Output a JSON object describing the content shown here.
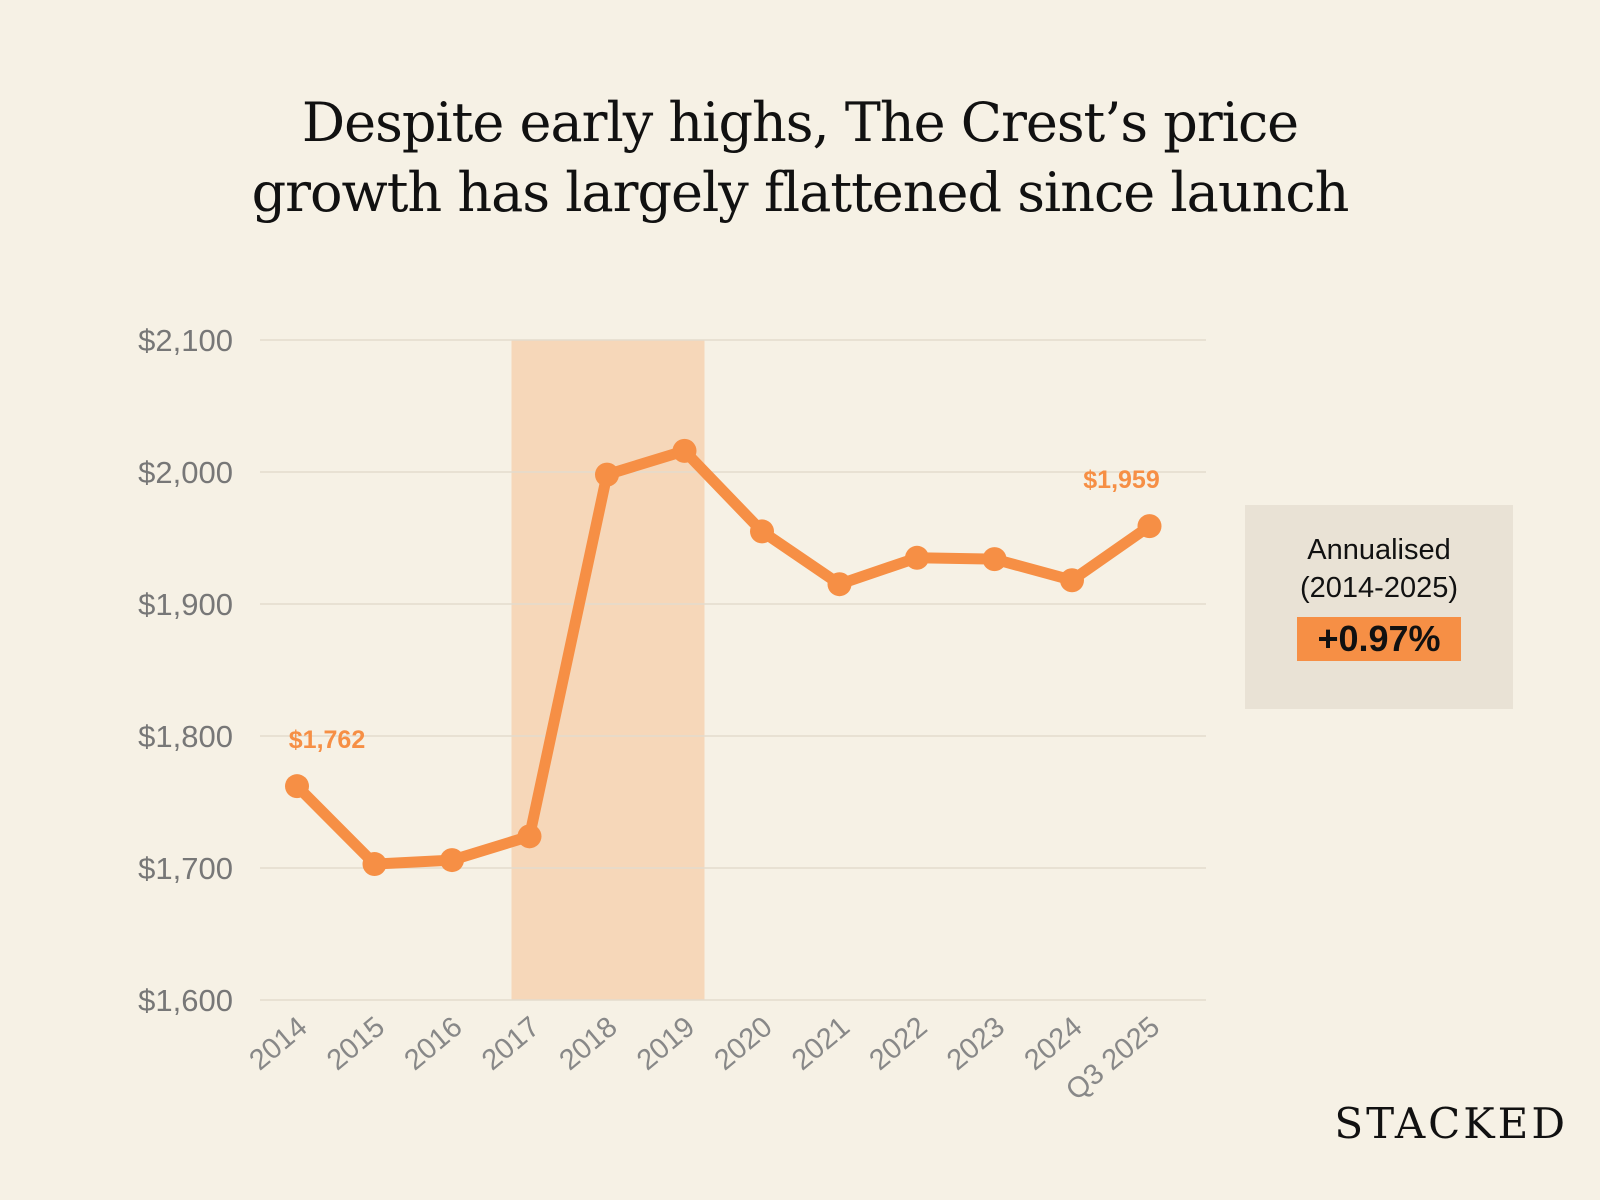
{
  "title_lines": [
    "Despite early highs, The Crest’s price",
    "growth has largely flattened since launch"
  ],
  "annotation": {
    "label_line1": "Annualised",
    "label_line2": "(2014-2025)",
    "value": "+0.97%"
  },
  "logo": "STACKED",
  "colors": {
    "line": "#f68f45",
    "highlight": "#f6d7b9",
    "label": "#f68f45",
    "background": "#f6f1e5",
    "box": "#e9e2d5"
  },
  "chart_data": {
    "type": "line",
    "categories": [
      "2014",
      "2015",
      "2016",
      "2017",
      "2018",
      "2019",
      "2020",
      "2021",
      "2022",
      "2023",
      "2024",
      "Q3 2025"
    ],
    "values": [
      1762,
      1703,
      1706,
      1724,
      1998,
      2016,
      1955,
      1915,
      1935,
      1934,
      1918,
      1959
    ],
    "data_labels": {
      "0": "$1,762",
      "11": "$1,959"
    },
    "ylim": [
      1600,
      2100
    ],
    "yticks": [
      1600,
      1700,
      1800,
      1900,
      2000,
      2100
    ],
    "ytick_labels": [
      "$1,600",
      "$1,700",
      "$1,800",
      "$1,900",
      "$2,000",
      "$2,100"
    ],
    "highlight_range": [
      "2017",
      "2019"
    ],
    "grid": true,
    "xlabel": "",
    "ylabel": ""
  }
}
